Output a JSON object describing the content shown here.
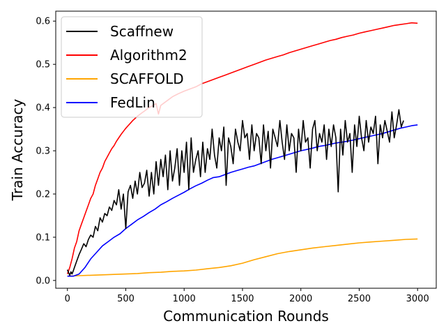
{
  "chart_data": {
    "type": "line",
    "title": "",
    "xlabel": "Communication Rounds",
    "ylabel": "Train Accuracy",
    "xlim": [
      -100,
      3160
    ],
    "ylim": [
      -0.018,
      0.623
    ],
    "xticks": [
      0,
      500,
      1000,
      1500,
      2000,
      2500,
      3000
    ],
    "yticks": [
      0.0,
      0.1,
      0.2,
      0.3,
      0.4,
      0.5,
      0.6
    ],
    "grid": false,
    "legend_position": "top-left",
    "series": [
      {
        "name": "Scaffnew",
        "color": "#000000",
        "x": [
          0,
          10,
          20,
          30,
          40,
          50,
          60,
          80,
          100,
          120,
          140,
          160,
          180,
          200,
          220,
          240,
          260,
          280,
          300,
          320,
          340,
          360,
          380,
          400,
          420,
          440,
          460,
          480,
          500,
          520,
          540,
          560,
          580,
          600,
          620,
          640,
          660,
          680,
          700,
          720,
          740,
          760,
          780,
          800,
          820,
          840,
          860,
          880,
          900,
          920,
          940,
          960,
          980,
          1000,
          1020,
          1040,
          1060,
          1080,
          1100,
          1120,
          1140,
          1160,
          1180,
          1200,
          1220,
          1240,
          1260,
          1280,
          1300,
          1320,
          1340,
          1360,
          1380,
          1400,
          1420,
          1440,
          1460,
          1480,
          1500,
          1520,
          1540,
          1560,
          1580,
          1600,
          1620,
          1640,
          1660,
          1680,
          1700,
          1720,
          1740,
          1760,
          1780,
          1800,
          1820,
          1840,
          1860,
          1880,
          1900,
          1920,
          1940,
          1960,
          1980,
          2000,
          2020,
          2040,
          2060,
          2080,
          2100,
          2120,
          2140,
          2160,
          2180,
          2200,
          2220,
          2240,
          2260,
          2280,
          2300,
          2320,
          2340,
          2360,
          2380,
          2400,
          2420,
          2440,
          2460,
          2480,
          2500,
          2520,
          2540,
          2560,
          2580,
          2600,
          2620,
          2640,
          2660,
          2680,
          2700,
          2720,
          2740,
          2760,
          2780,
          2800,
          2820,
          2840,
          2860,
          2880
        ],
        "y": [
          0.025,
          0.018,
          0.012,
          0.02,
          0.015,
          0.022,
          0.03,
          0.045,
          0.06,
          0.072,
          0.085,
          0.078,
          0.095,
          0.105,
          0.1,
          0.125,
          0.115,
          0.145,
          0.135,
          0.155,
          0.15,
          0.17,
          0.162,
          0.185,
          0.175,
          0.21,
          0.165,
          0.2,
          0.12,
          0.205,
          0.22,
          0.19,
          0.23,
          0.2,
          0.25,
          0.215,
          0.225,
          0.255,
          0.195,
          0.25,
          0.2,
          0.275,
          0.22,
          0.28,
          0.24,
          0.29,
          0.21,
          0.3,
          0.23,
          0.26,
          0.305,
          0.22,
          0.3,
          0.25,
          0.32,
          0.21,
          0.33,
          0.25,
          0.28,
          0.3,
          0.24,
          0.32,
          0.25,
          0.305,
          0.28,
          0.35,
          0.29,
          0.26,
          0.33,
          0.3,
          0.355,
          0.22,
          0.33,
          0.31,
          0.27,
          0.35,
          0.32,
          0.3,
          0.37,
          0.33,
          0.34,
          0.28,
          0.36,
          0.3,
          0.34,
          0.33,
          0.27,
          0.36,
          0.3,
          0.345,
          0.26,
          0.35,
          0.33,
          0.31,
          0.37,
          0.32,
          0.28,
          0.36,
          0.3,
          0.34,
          0.33,
          0.25,
          0.35,
          0.3,
          0.37,
          0.32,
          0.33,
          0.26,
          0.35,
          0.37,
          0.3,
          0.34,
          0.32,
          0.36,
          0.28,
          0.35,
          0.31,
          0.36,
          0.33,
          0.205,
          0.35,
          0.29,
          0.37,
          0.32,
          0.34,
          0.25,
          0.36,
          0.31,
          0.38,
          0.33,
          0.3,
          0.37,
          0.32,
          0.355,
          0.34,
          0.38,
          0.27,
          0.36,
          0.33,
          0.37,
          0.345,
          0.32,
          0.39,
          0.33,
          0.36,
          0.395,
          0.355,
          0.37
        ]
      },
      {
        "name": "Algorithm2",
        "color": "#ff0000",
        "x": [
          0,
          20,
          40,
          60,
          80,
          100,
          120,
          140,
          160,
          180,
          200,
          220,
          240,
          260,
          280,
          300,
          320,
          340,
          360,
          380,
          400,
          420,
          440,
          460,
          480,
          500,
          520,
          540,
          560,
          580,
          600,
          620,
          640,
          660,
          680,
          700,
          720,
          740,
          760,
          780,
          800,
          850,
          900,
          950,
          1000,
          1050,
          1100,
          1150,
          1200,
          1250,
          1300,
          1350,
          1400,
          1450,
          1500,
          1550,
          1600,
          1650,
          1700,
          1750,
          1800,
          1850,
          1900,
          1950,
          2000,
          2050,
          2100,
          2150,
          2200,
          2250,
          2300,
          2350,
          2400,
          2450,
          2500,
          2550,
          2600,
          2650,
          2700,
          2750,
          2800,
          2850,
          2900,
          2950,
          3000
        ],
        "y": [
          0.015,
          0.03,
          0.05,
          0.075,
          0.09,
          0.115,
          0.13,
          0.145,
          0.16,
          0.175,
          0.19,
          0.2,
          0.22,
          0.235,
          0.25,
          0.26,
          0.275,
          0.285,
          0.295,
          0.305,
          0.312,
          0.322,
          0.33,
          0.338,
          0.345,
          0.352,
          0.358,
          0.364,
          0.37,
          0.375,
          0.38,
          0.384,
          0.388,
          0.392,
          0.396,
          0.4,
          0.403,
          0.406,
          0.409,
          0.385,
          0.405,
          0.415,
          0.425,
          0.432,
          0.438,
          0.443,
          0.448,
          0.455,
          0.46,
          0.465,
          0.47,
          0.475,
          0.48,
          0.485,
          0.49,
          0.495,
          0.5,
          0.505,
          0.51,
          0.514,
          0.518,
          0.522,
          0.527,
          0.531,
          0.535,
          0.539,
          0.543,
          0.547,
          0.551,
          0.555,
          0.558,
          0.562,
          0.565,
          0.568,
          0.572,
          0.575,
          0.578,
          0.581,
          0.584,
          0.587,
          0.59,
          0.592,
          0.594,
          0.596,
          0.595
        ]
      },
      {
        "name": "SCAFFOLD",
        "color": "#ffa500",
        "x": [
          0,
          100,
          200,
          300,
          400,
          500,
          600,
          700,
          800,
          900,
          1000,
          1100,
          1200,
          1300,
          1400,
          1500,
          1600,
          1700,
          1800,
          1900,
          2000,
          2100,
          2200,
          2300,
          2400,
          2500,
          2600,
          2700,
          2800,
          2900,
          3000
        ],
        "y": [
          0.01,
          0.011,
          0.012,
          0.013,
          0.014,
          0.015,
          0.016,
          0.018,
          0.019,
          0.021,
          0.022,
          0.024,
          0.027,
          0.03,
          0.034,
          0.04,
          0.048,
          0.055,
          0.062,
          0.067,
          0.071,
          0.075,
          0.078,
          0.081,
          0.084,
          0.087,
          0.089,
          0.091,
          0.093,
          0.095,
          0.096
        ]
      },
      {
        "name": "FedLin",
        "color": "#0000ff",
        "x": [
          0,
          50,
          100,
          150,
          200,
          250,
          300,
          350,
          400,
          450,
          500,
          550,
          600,
          650,
          700,
          750,
          800,
          850,
          900,
          950,
          1000,
          1050,
          1100,
          1150,
          1200,
          1250,
          1300,
          1350,
          1400,
          1450,
          1500,
          1550,
          1600,
          1650,
          1700,
          1750,
          1800,
          1850,
          1900,
          1950,
          2000,
          2050,
          2100,
          2150,
          2200,
          2250,
          2300,
          2350,
          2400,
          2450,
          2500,
          2550,
          2600,
          2650,
          2700,
          2750,
          2800,
          2850,
          2900,
          2950,
          3000
        ],
        "y": [
          0.01,
          0.01,
          0.015,
          0.03,
          0.05,
          0.065,
          0.08,
          0.09,
          0.1,
          0.108,
          0.12,
          0.13,
          0.14,
          0.148,
          0.157,
          0.165,
          0.175,
          0.182,
          0.19,
          0.197,
          0.204,
          0.212,
          0.219,
          0.225,
          0.232,
          0.238,
          0.24,
          0.245,
          0.25,
          0.254,
          0.258,
          0.262,
          0.265,
          0.27,
          0.275,
          0.28,
          0.284,
          0.288,
          0.292,
          0.296,
          0.3,
          0.303,
          0.306,
          0.31,
          0.312,
          0.315,
          0.318,
          0.32,
          0.322,
          0.325,
          0.328,
          0.331,
          0.334,
          0.337,
          0.34,
          0.344,
          0.348,
          0.352,
          0.355,
          0.358,
          0.36
        ]
      }
    ]
  }
}
